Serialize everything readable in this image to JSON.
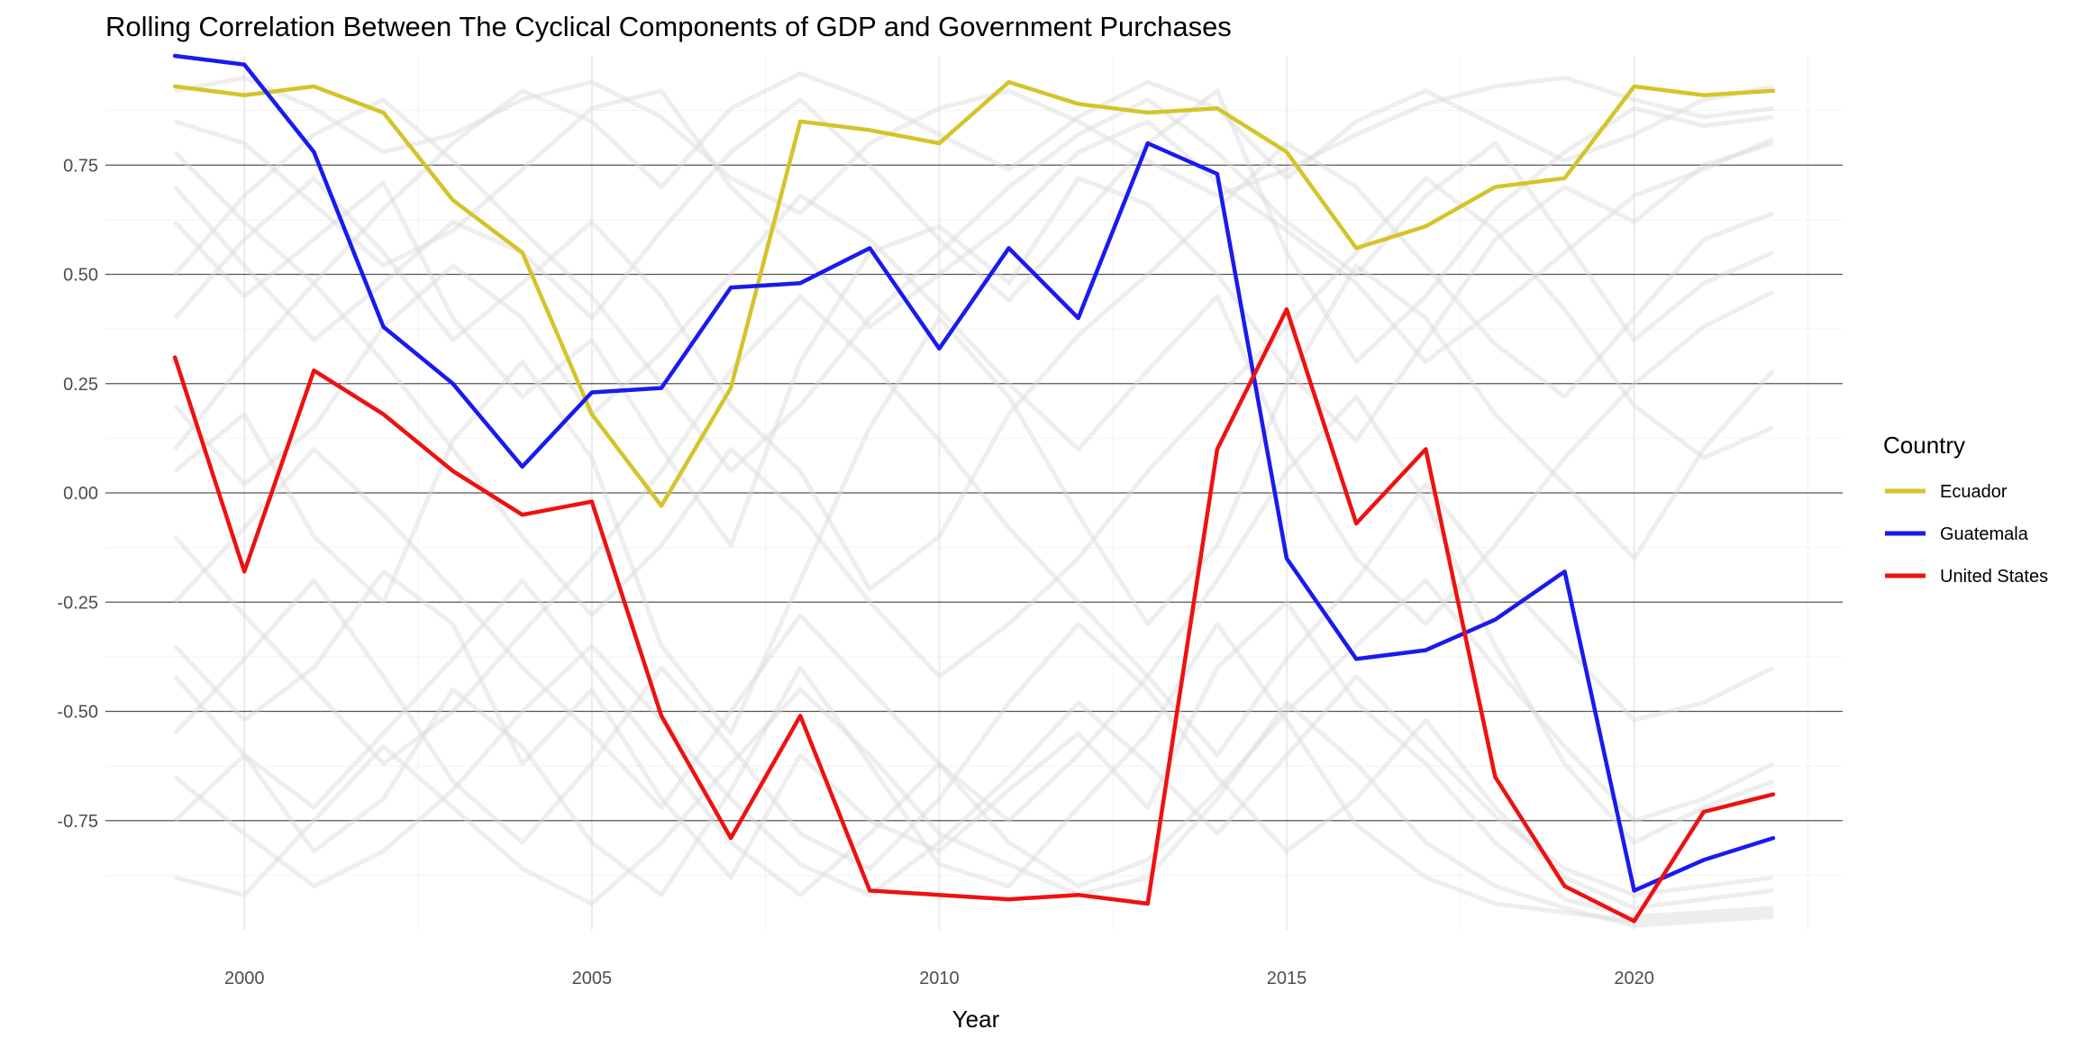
{
  "chart_data": {
    "type": "line",
    "title": "Rolling Correlation Between The Cyclical Components of GDP and Government Purchases",
    "xlabel": "Year",
    "ylabel": "",
    "xlim": [
      1998,
      2023
    ],
    "ylim": [
      -1.0,
      1.0
    ],
    "x_ticks": [
      2000,
      2005,
      2010,
      2015,
      2020
    ],
    "y_ticks": [
      0.75,
      0.5,
      0.25,
      0.0,
      -0.25,
      -0.5,
      -0.75
    ],
    "y_tick_labels": [
      "0.75",
      "0.50",
      "0.25",
      "0.00",
      "-0.25",
      "-0.50",
      "-0.75"
    ],
    "grid": true,
    "legend": {
      "title": "Country",
      "placement": "right"
    },
    "x": [
      1999,
      2000,
      2001,
      2002,
      2003,
      2004,
      2005,
      2006,
      2007,
      2008,
      2009,
      2010,
      2011,
      2012,
      2013,
      2014,
      2015,
      2016,
      2017,
      2018,
      2019,
      2020,
      2021,
      2022
    ],
    "series": [
      {
        "name": "Ecuador",
        "color": "#d4c42a",
        "values": [
          0.93,
          0.91,
          0.93,
          0.87,
          0.67,
          0.55,
          0.18,
          -0.03,
          0.24,
          0.85,
          0.83,
          0.8,
          0.94,
          0.89,
          0.87,
          0.88,
          0.78,
          0.56,
          0.61,
          0.7,
          0.72,
          0.93,
          0.91,
          0.92
        ]
      },
      {
        "name": "Guatemala",
        "color": "#1a1aee",
        "values": [
          1.0,
          0.98,
          0.78,
          0.38,
          0.25,
          0.06,
          0.23,
          0.24,
          0.47,
          0.48,
          0.56,
          0.33,
          0.56,
          0.4,
          0.8,
          0.73,
          -0.15,
          -0.38,
          -0.36,
          -0.29,
          -0.18,
          -0.91,
          -0.84,
          -0.79
        ]
      },
      {
        "name": "United States",
        "color": "#ee1111",
        "values": [
          0.31,
          -0.18,
          0.28,
          0.18,
          0.05,
          -0.05,
          -0.02,
          -0.51,
          -0.79,
          -0.51,
          -0.91,
          -0.92,
          -0.93,
          -0.92,
          -0.94,
          0.1,
          0.42,
          -0.07,
          0.1,
          -0.65,
          -0.9,
          -0.98,
          -0.73,
          -0.69
        ]
      }
    ],
    "background_series_color": "#d9d9d9",
    "background_series": [
      [
        0.62,
        0.45,
        0.58,
        0.71,
        0.4,
        0.22,
        0.35,
        0.1,
        -0.12,
        0.3,
        0.55,
        0.61,
        0.48,
        0.72,
        0.66,
        0.5,
        0.28,
        0.12,
        0.35,
        0.58,
        0.7,
        0.62,
        0.75,
        0.8
      ],
      [
        -0.35,
        -0.52,
        -0.4,
        -0.18,
        -0.3,
        -0.62,
        -0.45,
        -0.7,
        -0.88,
        -0.6,
        -0.75,
        -0.82,
        -0.68,
        -0.55,
        -0.72,
        -0.4,
        -0.25,
        -0.48,
        -0.62,
        -0.8,
        -0.93,
        -0.97,
        -0.96,
        -0.95
      ],
      [
        0.85,
        0.8,
        0.66,
        0.52,
        0.6,
        0.74,
        0.88,
        0.92,
        0.7,
        0.55,
        0.38,
        0.5,
        0.62,
        0.78,
        0.85,
        0.71,
        0.6,
        0.48,
        0.3,
        0.42,
        0.55,
        0.68,
        0.74,
        0.81
      ],
      [
        0.05,
        0.18,
        -0.1,
        -0.25,
        0.12,
        0.3,
        0.08,
        -0.35,
        -0.55,
        -0.2,
        0.15,
        0.4,
        0.22,
        -0.05,
        -0.3,
        -0.12,
        0.25,
        0.52,
        0.4,
        0.18,
        0.02,
        -0.15,
        0.1,
        0.28
      ],
      [
        -0.75,
        -0.6,
        -0.82,
        -0.7,
        -0.45,
        -0.58,
        -0.8,
        -0.92,
        -0.68,
        -0.4,
        -0.62,
        -0.85,
        -0.9,
        -0.72,
        -0.55,
        -0.3,
        -0.52,
        -0.76,
        -0.88,
        -0.94,
        -0.96,
        -0.98,
        -0.97,
        -0.96
      ],
      [
        0.4,
        0.58,
        0.72,
        0.55,
        0.35,
        0.48,
        0.62,
        0.45,
        0.2,
        0.05,
        -0.22,
        -0.1,
        0.18,
        0.36,
        0.5,
        0.65,
        0.8,
        0.7,
        0.52,
        0.34,
        0.22,
        0.4,
        0.58,
        0.64
      ],
      [
        -0.1,
        -0.28,
        -0.45,
        -0.62,
        -0.5,
        -0.32,
        -0.15,
        0.05,
        0.28,
        0.45,
        0.3,
        0.12,
        -0.08,
        -0.25,
        -0.42,
        -0.6,
        -0.38,
        -0.2,
        0.02,
        -0.18,
        -0.35,
        -0.52,
        -0.48,
        -0.4
      ],
      [
        0.92,
        0.95,
        0.88,
        0.78,
        0.82,
        0.9,
        0.94,
        0.86,
        0.72,
        0.64,
        0.8,
        0.88,
        0.92,
        0.85,
        0.76,
        0.68,
        0.74,
        0.82,
        0.89,
        0.93,
        0.95,
        0.9,
        0.86,
        0.88
      ],
      [
        -0.55,
        -0.38,
        -0.2,
        -0.42,
        -0.66,
        -0.8,
        -0.62,
        -0.4,
        -0.58,
        -0.78,
        -0.86,
        -0.7,
        -0.48,
        -0.3,
        -0.45,
        -0.65,
        -0.82,
        -0.7,
        -0.52,
        -0.72,
        -0.88,
        -0.95,
        -0.93,
        -0.91
      ],
      [
        0.2,
        0.02,
        0.15,
        0.38,
        0.52,
        0.4,
        0.18,
        0.32,
        0.5,
        0.68,
        0.58,
        0.42,
        0.25,
        0.1,
        0.28,
        0.45,
        0.1,
        -0.15,
        -0.3,
        -0.12,
        0.08,
        0.25,
        0.38,
        0.46
      ],
      [
        -0.88,
        -0.92,
        -0.75,
        -0.58,
        -0.72,
        -0.86,
        -0.94,
        -0.8,
        -0.62,
        -0.45,
        -0.6,
        -0.78,
        -0.85,
        -0.92,
        -0.88,
        -0.7,
        -0.48,
        -0.62,
        -0.8,
        -0.9,
        -0.95,
        -0.99,
        -0.98,
        -0.97
      ],
      [
        0.7,
        0.52,
        0.35,
        0.48,
        0.62,
        0.55,
        0.4,
        0.6,
        0.78,
        0.9,
        0.75,
        0.58,
        0.44,
        0.62,
        0.8,
        0.92,
        0.55,
        0.3,
        0.45,
        0.65,
        0.78,
        0.88,
        0.84,
        0.86
      ],
      [
        -0.25,
        -0.08,
        0.1,
        -0.05,
        -0.22,
        -0.4,
        -0.55,
        -0.72,
        -0.5,
        -0.28,
        -0.45,
        -0.62,
        -0.75,
        -0.6,
        -0.42,
        -0.2,
        0.05,
        0.22,
        -0.02,
        -0.35,
        -0.62,
        -0.8,
        -0.72,
        -0.66
      ],
      [
        0.5,
        0.68,
        0.82,
        0.9,
        0.76,
        0.6,
        0.45,
        0.25,
        0.05,
        0.2,
        0.4,
        0.55,
        0.7,
        0.82,
        0.9,
        0.78,
        0.62,
        0.5,
        0.68,
        0.8,
        0.58,
        0.35,
        0.48,
        0.55
      ],
      [
        -0.65,
        -0.78,
        -0.9,
        -0.82,
        -0.68,
        -0.5,
        -0.35,
        -0.52,
        -0.7,
        -0.85,
        -0.92,
        -0.8,
        -0.65,
        -0.48,
        -0.62,
        -0.78,
        -0.6,
        -0.42,
        -0.58,
        -0.74,
        -0.86,
        -0.92,
        -0.9,
        -0.88
      ],
      [
        0.1,
        0.3,
        0.48,
        0.3,
        0.1,
        -0.1,
        -0.28,
        -0.12,
        0.1,
        -0.05,
        -0.25,
        -0.42,
        -0.3,
        -0.15,
        0.05,
        0.22,
        0.38,
        0.55,
        0.72,
        0.6,
        0.42,
        0.2,
        0.08,
        0.15
      ],
      [
        0.78,
        0.62,
        0.48,
        0.65,
        0.8,
        0.92,
        0.85,
        0.7,
        0.88,
        0.96,
        0.9,
        0.82,
        0.74,
        0.86,
        0.94,
        0.88,
        0.72,
        0.85,
        0.92,
        0.84,
        0.76,
        0.82,
        0.9,
        0.93
      ],
      [
        -0.42,
        -0.6,
        -0.72,
        -0.55,
        -0.38,
        -0.2,
        -0.4,
        -0.6,
        -0.8,
        -0.92,
        -0.78,
        -0.62,
        -0.8,
        -0.9,
        -0.84,
        -0.68,
        -0.5,
        -0.35,
        -0.2,
        -0.4,
        -0.58,
        -0.75,
        -0.7,
        -0.62
      ]
    ]
  }
}
